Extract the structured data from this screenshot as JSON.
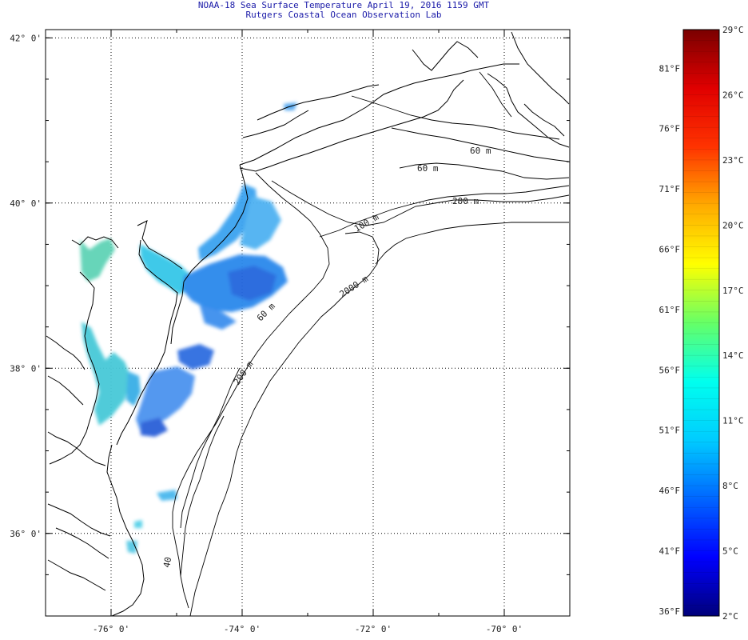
{
  "header": {
    "title": "NOAA-18 Sea Surface Temperature April 19, 2016 1159 GMT",
    "subtitle": "Rutgers Coastal Ocean Observation Lab"
  },
  "map": {
    "lat_ticks": [
      {
        "value": 42,
        "label": "42° 0'"
      },
      {
        "value": 40,
        "label": "40° 0'"
      },
      {
        "value": 38,
        "label": "38° 0'"
      },
      {
        "value": 36,
        "label": "36° 0'"
      }
    ],
    "lon_ticks": [
      {
        "value": -76,
        "label": "-76° 0'"
      },
      {
        "value": -74,
        "label": "-74° 0'"
      },
      {
        "value": -72,
        "label": "-72° 0'"
      },
      {
        "value": -70,
        "label": "-70° 0'"
      }
    ],
    "lon_range": [
      -77,
      -69
    ],
    "lat_range": [
      35,
      42.1
    ],
    "grid": "dotted",
    "isobath_labels": [
      "60 m",
      "60 m",
      "200 m",
      "100 m",
      "2000 m",
      "60 m",
      "200 m",
      "40"
    ]
  },
  "colorbar": {
    "celsius_labels": [
      "29°C",
      "26°C",
      "23°C",
      "20°C",
      "17°C",
      "14°C",
      "11°C",
      "8°C",
      "5°C",
      "2°C"
    ],
    "fahrenheit_labels": [
      "81°F",
      "76°F",
      "71°F",
      "66°F",
      "61°F",
      "56°F",
      "51°F",
      "46°F",
      "41°F",
      "36°F"
    ],
    "min_c": 2,
    "max_c": 29,
    "colors": [
      "#00007a",
      "#0000ff",
      "#0066ff",
      "#00ccff",
      "#00ffee",
      "#66ff66",
      "#ffff00",
      "#ffaa00",
      "#ff3300",
      "#e00000",
      "#7a0000"
    ]
  }
}
